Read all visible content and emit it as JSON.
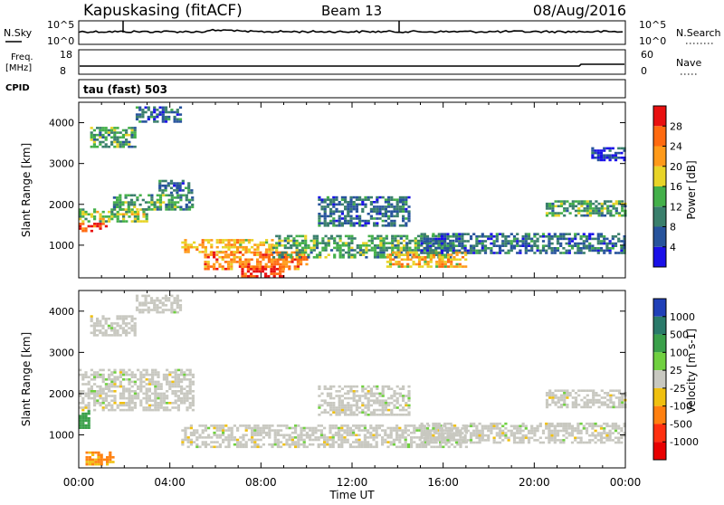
{
  "header": {
    "station": "Kapuskasing (fitACF)",
    "beam": "Beam 13",
    "date": "08/Aug/2016"
  },
  "param_panels": {
    "nsky": {
      "label": "N.Sky",
      "tick_labels": [
        "10^5",
        "10^0"
      ],
      "right_label": "N.Search",
      "right_tick_labels": [
        "10^5",
        "10^0"
      ]
    },
    "freq": {
      "label": "Freq.",
      "unit": "[MHz]",
      "tick_labels": [
        "18",
        "8"
      ],
      "right_label": "Nave",
      "right_tick_labels": [
        "60",
        "0"
      ]
    },
    "cpid": {
      "label": "CPID",
      "text": "tau (fast) 503"
    }
  },
  "axes": {
    "x_tick_labels": [
      "00:00",
      "04:00",
      "08:00",
      "12:00",
      "16:00",
      "20:00",
      "00:00"
    ],
    "xlabel": "Time UT",
    "y_tick_labels": [
      "1000",
      "2000",
      "3000",
      "4000"
    ],
    "ylabel": "Slant Range [km]"
  },
  "colorbars": {
    "power": {
      "label": "Power [dB]",
      "tick_labels": [
        "4",
        "8",
        "12",
        "16",
        "20",
        "24",
        "28"
      ],
      "colors": [
        "#1a10e8",
        "#27539c",
        "#3a7f6c",
        "#44b04a",
        "#e8d428",
        "#ff9a1a",
        "#ff6a10",
        "#e81010"
      ]
    },
    "velocity": {
      "label": "Velocity [m s-1]",
      "tick_labels": [
        "1000",
        "500",
        "100",
        "25",
        "-25",
        "-100",
        "-500",
        "-1000"
      ],
      "colors": [
        "#2040b8",
        "#2a7a6a",
        "#3aa04a",
        "#70d040",
        "#c8c8c0",
        "#f0c010",
        "#ff8010",
        "#ff3010",
        "#e80000"
      ]
    }
  },
  "chart_data": [
    {
      "type": "heatmap",
      "title": "",
      "xlabel": "Time UT",
      "ylabel": "Slant Range [km]",
      "x_range_hours": [
        0,
        24
      ],
      "y_range_km": [
        200,
        4500
      ],
      "value_label": "Power [dB]",
      "regions": [
        {
          "t0": 0.0,
          "t1": 1.2,
          "r0": 1350,
          "r1": 1550,
          "value": 28
        },
        {
          "t0": 0.0,
          "t1": 3.0,
          "r0": 1600,
          "r1": 1900,
          "value": 16
        },
        {
          "t0": 1.5,
          "t1": 5.0,
          "r0": 1900,
          "r1": 2250,
          "value": 12
        },
        {
          "t0": 3.5,
          "t1": 5.0,
          "r0": 2300,
          "r1": 2600,
          "value": 8
        },
        {
          "t0": 0.5,
          "t1": 2.5,
          "r0": 3400,
          "r1": 3900,
          "value": 12
        },
        {
          "t0": 2.5,
          "t1": 4.5,
          "r0": 4000,
          "r1": 4400,
          "value": 8
        },
        {
          "t0": 4.5,
          "t1": 8.5,
          "r0": 850,
          "r1": 1150,
          "value": 20
        },
        {
          "t0": 5.5,
          "t1": 10.0,
          "r0": 400,
          "r1": 850,
          "value": 24
        },
        {
          "t0": 7.0,
          "t1": 9.0,
          "r0": 250,
          "r1": 500,
          "value": 28
        },
        {
          "t0": 8.5,
          "t1": 16.5,
          "r0": 700,
          "r1": 1250,
          "value": 12
        },
        {
          "t0": 13.5,
          "t1": 17.0,
          "r0": 500,
          "r1": 850,
          "value": 20
        },
        {
          "t0": 10.5,
          "t1": 14.5,
          "r0": 1500,
          "r1": 2200,
          "value": 8
        },
        {
          "t0": 15.0,
          "t1": 24.0,
          "r0": 800,
          "r1": 1300,
          "value": 8
        },
        {
          "t0": 20.5,
          "t1": 24.0,
          "r0": 1700,
          "r1": 2100,
          "value": 12
        },
        {
          "t0": 22.5,
          "t1": 24.0,
          "r0": 3100,
          "r1": 3400,
          "value": 4
        }
      ]
    },
    {
      "type": "heatmap",
      "title": "",
      "xlabel": "Time UT",
      "ylabel": "Slant Range [km]",
      "x_range_hours": [
        0,
        24
      ],
      "y_range_km": [
        200,
        4500
      ],
      "value_label": "Velocity [m s-1]",
      "regions": [
        {
          "t0": 0.0,
          "t1": 5.0,
          "r0": 1600,
          "r1": 2600,
          "value": 0
        },
        {
          "t0": 0.5,
          "t1": 2.5,
          "r0": 3400,
          "r1": 3900,
          "value": 0
        },
        {
          "t0": 2.5,
          "t1": 4.5,
          "r0": 4000,
          "r1": 4400,
          "value": 0
        },
        {
          "t0": 4.5,
          "t1": 17.0,
          "r0": 700,
          "r1": 1250,
          "value": 0
        },
        {
          "t0": 0.3,
          "t1": 1.5,
          "r0": 300,
          "r1": 600,
          "value": -150
        },
        {
          "t0": 0.0,
          "t1": 0.5,
          "r0": 1200,
          "r1": 1600,
          "value": 300
        },
        {
          "t0": 10.5,
          "t1": 14.5,
          "r0": 1500,
          "r1": 2200,
          "value": 0
        },
        {
          "t0": 15.0,
          "t1": 24.0,
          "r0": 800,
          "r1": 1300,
          "value": 0
        },
        {
          "t0": 20.5,
          "t1": 24.0,
          "r0": 1700,
          "r1": 2100,
          "value": 0
        }
      ]
    }
  ]
}
